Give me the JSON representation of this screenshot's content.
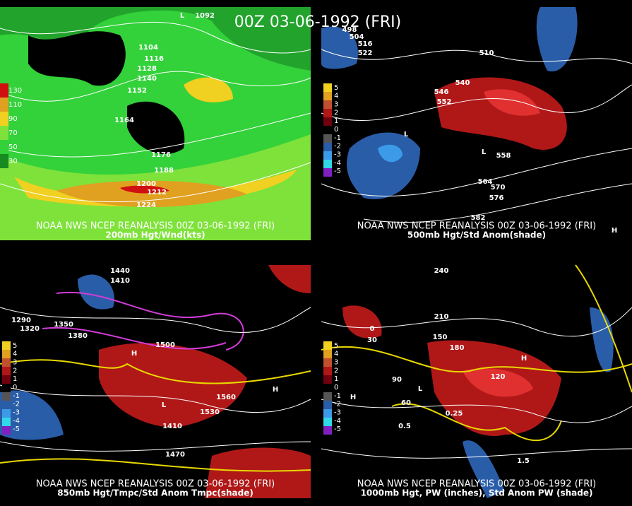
{
  "title": "00Z 03-06-1992 (FRI)",
  "panels": [
    {
      "caption": "NOAA NWS NCEP REANALYSIS 00Z 03-06-1992 (FRI)",
      "subcaption": "200mb Hgt/Wnd(kts)",
      "legend": [
        "130",
        "110",
        "90",
        "70",
        "50",
        "30"
      ],
      "labels": [
        "1092",
        "1104",
        "1116",
        "1128",
        "1140",
        "1152",
        "1164",
        "1176",
        "1188",
        "1200",
        "1212",
        "1224",
        "L"
      ]
    },
    {
      "caption": "NOAA NWS NCEP REANALYSIS 00Z 03-06-1992 (FRI)",
      "subcaption": "500mb Hgt/Std Anom(shade)",
      "legend": [
        "5",
        "4",
        "3",
        "2",
        "1",
        "0",
        "-1",
        "-2",
        "-3",
        "-4",
        "-5"
      ],
      "labels": [
        "516",
        "522",
        "510",
        "498",
        "504",
        "546",
        "552",
        "540",
        "558",
        "564",
        "570",
        "576",
        "582",
        "L",
        "L",
        "H"
      ]
    },
    {
      "caption": "NOAA NWS NCEP REANALYSIS 00Z 03-06-1992 (FRI)",
      "subcaption": "850mb Hgt/Tmpc/Std Anom Tmpc(shade)",
      "legend": [
        "5",
        "4",
        "3",
        "2",
        "1",
        "0",
        "-1",
        "-2",
        "-3",
        "-4",
        "-5"
      ],
      "labels": [
        "1440",
        "1410",
        "1290",
        "1320",
        "1350",
        "1380",
        "1500",
        "1530",
        "1560",
        "1470",
        "1410",
        "H",
        "H",
        "L"
      ]
    },
    {
      "caption": "NOAA NWS NCEP REANALYSIS 00Z 03-06-1992 (FRI)",
      "subcaption": "1000mb Hgt, PW (inches), Std Anom PW (shade)",
      "legend": [
        "5",
        "4",
        "3",
        "2",
        "1",
        "0",
        "-1",
        "-2",
        "-3",
        "-4",
        "-5"
      ],
      "labels": [
        "240",
        "0",
        "30",
        "60",
        "90",
        "120",
        "150",
        "180",
        "210",
        "0.25",
        "0.5",
        "1.5",
        "H",
        "H",
        "L"
      ]
    }
  ]
}
